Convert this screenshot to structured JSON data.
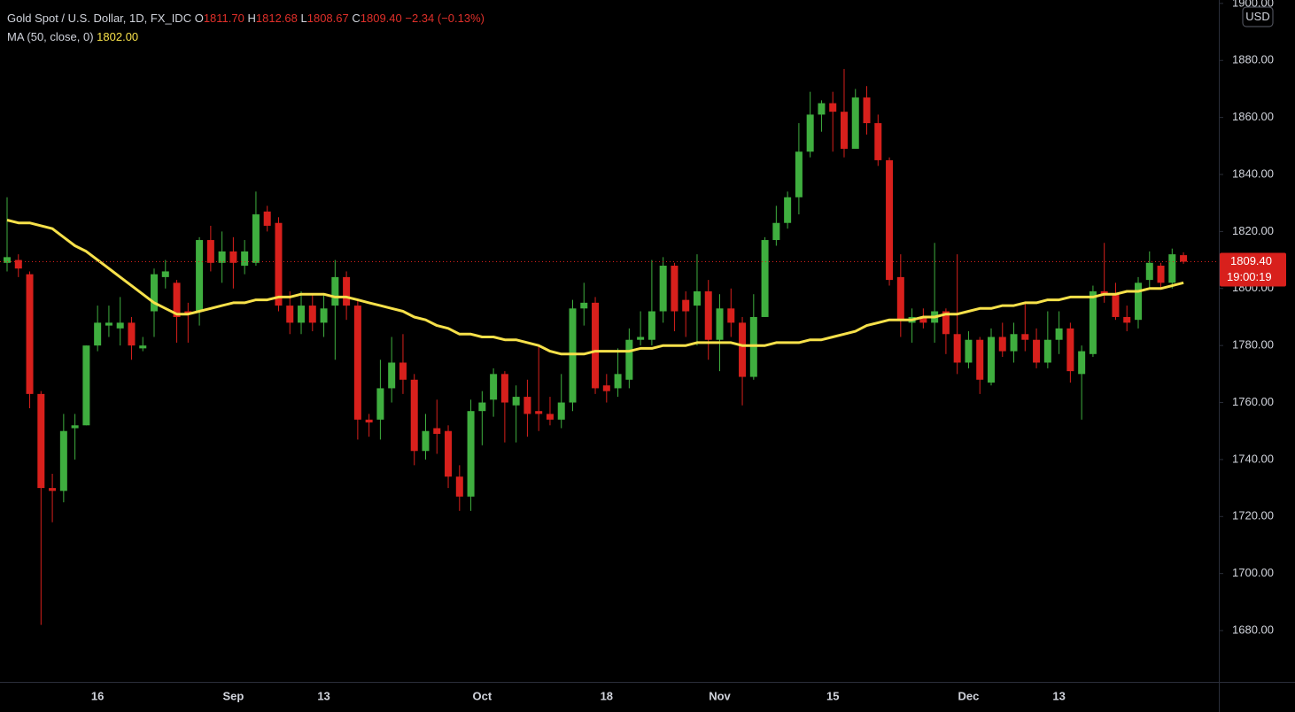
{
  "chart_data": {
    "type": "candlestick",
    "title": "Gold Spot / U.S. Dollar, 1D, FX_IDC",
    "ohlc_legend": [
      {
        "key": "O",
        "value": "1811.70"
      },
      {
        "key": "H",
        "value": "1812.68"
      },
      {
        "key": "L",
        "value": "1808.67"
      },
      {
        "key": "C",
        "value": "1809.40"
      }
    ],
    "change": "−2.34 (−0.13%)",
    "currency": "USD",
    "last_price_label": "1809.40",
    "countdown": "19:00:19",
    "up_color": "#3fae3f",
    "down_color": "#d8201c",
    "categories": [
      null,
      null,
      null,
      null,
      null,
      null,
      null,
      null,
      "16",
      null,
      null,
      null,
      null,
      null,
      null,
      null,
      null,
      null,
      null,
      null,
      "Sep",
      null,
      null,
      null,
      null,
      null,
      null,
      null,
      "13",
      null,
      null,
      null,
      null,
      null,
      null,
      null,
      null,
      null,
      null,
      null,
      null,
      null,
      "Oct",
      null,
      null,
      null,
      null,
      null,
      null,
      null,
      null,
      null,
      null,
      "18",
      null,
      null,
      null,
      null,
      null,
      null,
      null,
      null,
      null,
      "Nov",
      null,
      null,
      null,
      null,
      null,
      null,
      null,
      null,
      null,
      "15",
      null,
      null,
      null,
      null,
      null,
      null,
      null,
      null,
      null,
      null,
      null,
      "Dec",
      null,
      null,
      null,
      null,
      null,
      null,
      null,
      "13",
      null,
      null,
      null,
      null,
      null,
      null,
      null,
      null,
      null,
      null,
      null
    ],
    "open": [
      1809,
      1810,
      1805,
      1763,
      1730,
      1729,
      1751,
      1752,
      1780,
      1787,
      1786,
      1788,
      1779,
      1792,
      1804,
      1802,
      1792,
      1792,
      1817,
      1809,
      1813,
      1808,
      1809,
      1827,
      1823,
      1794,
      1788,
      1794,
      1788,
      1794,
      1804,
      1794,
      1754,
      1754,
      1765,
      1774,
      1768,
      1743,
      1751,
      1750,
      1734,
      1727,
      1757,
      1761,
      1770,
      1759,
      1762,
      1757,
      1756,
      1754,
      1760,
      1793,
      1795,
      1766,
      1765,
      1768,
      1782,
      1782,
      1792,
      1808,
      1796,
      1794,
      1799,
      1782,
      1793,
      1788,
      1769,
      1790,
      1817,
      1823,
      1832,
      1848,
      1861,
      1865,
      1862,
      1849,
      1867,
      1858,
      1845,
      1804,
      1788,
      1790,
      1788,
      1792,
      1784,
      1774,
      1782,
      1767,
      1783,
      1778,
      1784,
      1782,
      1774,
      1782,
      1786,
      1770,
      1777,
      1799,
      1798,
      1790,
      1789,
      1803,
      1808,
      1802,
      1811.7
    ],
    "high": [
      1832,
      1812,
      1806,
      1764,
      1735,
      1756,
      1756,
      1780,
      1794,
      1794,
      1797,
      1790,
      1783,
      1807,
      1810,
      1803,
      1795,
      1818,
      1822,
      1820,
      1818,
      1817,
      1834,
      1829,
      1825,
      1799,
      1799,
      1798,
      1798,
      1810,
      1806,
      1796,
      1756,
      1775,
      1783,
      1784,
      1770,
      1756,
      1761,
      1752,
      1738,
      1761,
      1764,
      1772,
      1771,
      1766,
      1768,
      1780,
      1762,
      1770,
      1796,
      1802,
      1797,
      1770,
      1779,
      1786,
      1792,
      1810,
      1811,
      1809,
      1799,
      1812,
      1803,
      1798,
      1800,
      1790,
      1798,
      1818,
      1829,
      1834,
      1858,
      1869,
      1866,
      1869,
      1877,
      1870,
      1871,
      1861,
      1846,
      1812,
      1793,
      1793,
      1816,
      1793,
      1812,
      1785,
      1783,
      1786,
      1788,
      1788,
      1795,
      1786,
      1792,
      1792,
      1788,
      1780,
      1801,
      1816,
      1802,
      1794,
      1804,
      1813,
      1809,
      1814,
      1812.68
    ],
    "low": [
      1806,
      1804,
      1758,
      1682,
      1718,
      1725,
      1740,
      1752,
      1778,
      1783,
      1780,
      1775,
      1778,
      1783,
      1800,
      1781,
      1781,
      1787,
      1806,
      1802,
      1800,
      1805,
      1808,
      1820,
      1792,
      1784,
      1784,
      1785,
      1783,
      1775,
      1789,
      1747,
      1748,
      1747,
      1760,
      1763,
      1738,
      1740,
      1742,
      1730,
      1722,
      1722,
      1745,
      1755,
      1746,
      1746,
      1748,
      1750,
      1752,
      1751,
      1757,
      1787,
      1763,
      1760,
      1762,
      1765,
      1780,
      1780,
      1788,
      1785,
      1783,
      1780,
      1775,
      1771,
      1783,
      1759,
      1768,
      1790,
      1815,
      1821,
      1826,
      1846,
      1855,
      1848,
      1846,
      1849,
      1854,
      1843,
      1801,
      1783,
      1781,
      1786,
      1781,
      1777,
      1770,
      1772,
      1763,
      1766,
      1776,
      1774,
      1778,
      1772,
      1772,
      1777,
      1767,
      1754,
      1776,
      1795,
      1789,
      1785,
      1786,
      1800,
      1800,
      1800,
      1808.67
    ],
    "close": [
      1811,
      1807,
      1763,
      1730,
      1729,
      1750,
      1752,
      1780,
      1788,
      1788,
      1788,
      1780,
      1780,
      1805,
      1806,
      1790,
      1791,
      1817,
      1809,
      1813,
      1809,
      1813,
      1826,
      1822,
      1794,
      1788,
      1794,
      1788,
      1793,
      1804,
      1794,
      1754,
      1753,
      1765,
      1774,
      1768,
      1743,
      1750,
      1749,
      1734,
      1727,
      1757,
      1760,
      1770,
      1760,
      1762,
      1756,
      1756,
      1754,
      1760,
      1793,
      1795,
      1765,
      1764,
      1770,
      1782,
      1783,
      1792,
      1808,
      1792,
      1792,
      1799,
      1782,
      1793,
      1788,
      1769,
      1790,
      1817,
      1823,
      1832,
      1848,
      1861,
      1865,
      1862,
      1849,
      1867,
      1858,
      1845,
      1803,
      1789,
      1790,
      1788,
      1792,
      1784,
      1774,
      1782,
      1768,
      1783,
      1778,
      1784,
      1782,
      1774,
      1782,
      1786,
      1771,
      1778,
      1799,
      1798,
      1790,
      1788,
      1802,
      1809,
      1802,
      1812,
      1809.4
    ],
    "series": [
      {
        "name": "MA (50, close, 0)",
        "color": "#f7e14a",
        "last_label": "1802.00",
        "values": [
          1824,
          1823,
          1823,
          1822,
          1821,
          1818,
          1815,
          1813,
          1810,
          1807,
          1804,
          1801,
          1798,
          1795,
          1793,
          1791,
          1791,
          1792,
          1793,
          1794,
          1795,
          1795,
          1796,
          1796,
          1797,
          1797,
          1798,
          1798,
          1798,
          1797,
          1797,
          1796,
          1795,
          1794,
          1793,
          1792,
          1790,
          1789,
          1787,
          1786,
          1784,
          1784,
          1783,
          1783,
          1782,
          1782,
          1781,
          1780,
          1778,
          1777,
          1777,
          1777,
          1778,
          1778,
          1778,
          1778,
          1779,
          1779,
          1780,
          1780,
          1780,
          1781,
          1781,
          1781,
          1781,
          1780,
          1780,
          1780,
          1781,
          1781,
          1781,
          1782,
          1782,
          1783,
          1784,
          1785,
          1787,
          1788,
          1789,
          1789,
          1789,
          1790,
          1790,
          1791,
          1791,
          1792,
          1793,
          1793,
          1794,
          1794,
          1795,
          1795,
          1796,
          1796,
          1797,
          1797,
          1797,
          1798,
          1798,
          1799,
          1799,
          1800,
          1800,
          1801,
          1802
        ]
      }
    ],
    "ylim": [
      1662,
      1901.2
    ],
    "yticks": [
      {
        "value": 1680,
        "label": "1680.00"
      },
      {
        "value": 1700,
        "label": "1700.00"
      },
      {
        "value": 1720,
        "label": "1720.00"
      },
      {
        "value": 1740,
        "label": "1740.00"
      },
      {
        "value": 1760,
        "label": "1760.00"
      },
      {
        "value": 1780,
        "label": "1780.00"
      },
      {
        "value": 1800,
        "label": "1800.00"
      },
      {
        "value": 1820,
        "label": "1820.00"
      },
      {
        "value": 1840,
        "label": "1840.00"
      },
      {
        "value": 1860,
        "label": "1860.00"
      },
      {
        "value": 1880,
        "label": "1880.00"
      },
      {
        "value": 1900,
        "label": "1900.00"
      }
    ],
    "grid": false
  }
}
